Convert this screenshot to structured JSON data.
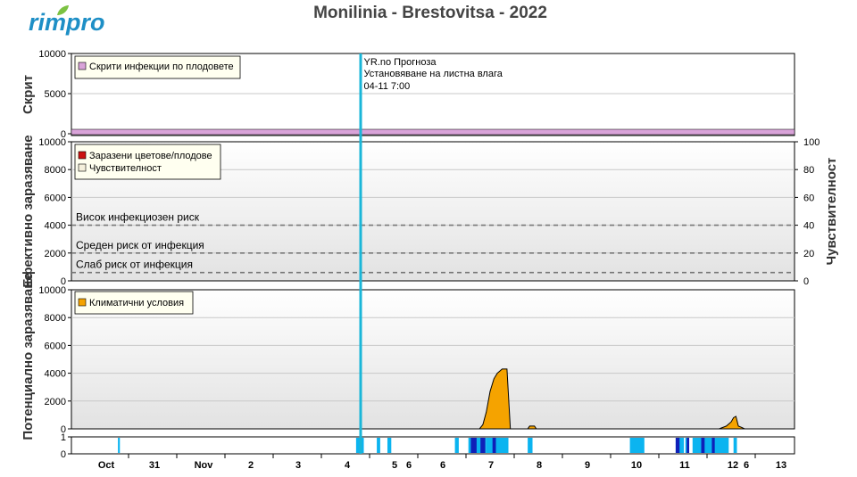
{
  "brand": {
    "name": "rimpro",
    "leaf_color": "#7cc242",
    "text_color": "#1e8fc6"
  },
  "chart_data": {
    "type": "area",
    "title": "Monilinia - Brestovitsa - 2022",
    "x_ticks_major": [
      "Oct",
      "31",
      "Nov",
      "2",
      "3",
      "4",
      "5",
      "6",
      "7",
      "8",
      "9",
      "10",
      "11",
      "12",
      "13"
    ],
    "x_ticks_minor": [
      "6",
      "6"
    ],
    "forecast_marker": {
      "lines": [
        "YR.no Прогноза",
        "Установяване на листна влага",
        "04-11 7:00"
      ],
      "color": "#1ab6d8"
    },
    "panels": [
      {
        "id": "hidden",
        "ylabel": "Скрит",
        "ylim": [
          0,
          10000
        ],
        "yticks": [
          "10000",
          "5000",
          "0"
        ],
        "legend": [
          {
            "label": "Скрити инфекции по плодовете",
            "color": "#d9a3d9"
          }
        ],
        "baseline_value": 300
      },
      {
        "id": "effective",
        "ylabel": "Ефективно заразяване",
        "ylabel_right": "Чувствителност",
        "ylim": [
          0,
          10000
        ],
        "yticks": [
          "10000",
          "8000",
          "6000",
          "4000",
          "2000",
          "0"
        ],
        "ylim_right": [
          0,
          100
        ],
        "yticks_right": [
          "100",
          "80",
          "60",
          "40",
          "20",
          "0"
        ],
        "legend": [
          {
            "label": "Заразени цветове/плодове",
            "color": "#cc1111"
          },
          {
            "label": "Чувствителност",
            "color": "#f5f0dc"
          }
        ],
        "risk_levels": [
          {
            "label": "Висок инфекциозен риск",
            "value": 4000
          },
          {
            "label": "Среден риск от инфекция",
            "value": 2000
          },
          {
            "label": "Слаб риск от инфекция",
            "value": 600
          }
        ]
      },
      {
        "id": "potential",
        "ylabel": "Потенциално заразяване",
        "ylim": [
          0,
          10000
        ],
        "yticks": [
          "10000",
          "8000",
          "6000",
          "4000",
          "2000",
          "0"
        ],
        "legend": [
          {
            "label": "Климатични условия",
            "color": "#f5a300"
          }
        ],
        "series": [
          {
            "name": "Климатични условия",
            "points": [
              [
                0,
                0
              ],
              [
                6.78,
                0
              ],
              [
                6.85,
                300
              ],
              [
                6.92,
                1200
              ],
              [
                7.0,
                2700
              ],
              [
                7.08,
                3600
              ],
              [
                7.15,
                4000
              ],
              [
                7.25,
                4300
              ],
              [
                7.35,
                4300
              ],
              [
                7.42,
                0
              ],
              [
                7.78,
                0
              ],
              [
                7.82,
                200
              ],
              [
                7.92,
                200
              ],
              [
                7.96,
                0
              ],
              [
                11.75,
                0
              ],
              [
                11.9,
                200
              ],
              [
                12.0,
                500
              ],
              [
                12.05,
                800
              ],
              [
                12.1,
                900
              ],
              [
                12.15,
                200
              ],
              [
                12.22,
                100
              ],
              [
                12.28,
                0
              ],
              [
                13.3,
                0
              ]
            ]
          }
        ]
      },
      {
        "id": "wetness",
        "ylim": [
          0,
          1
        ],
        "yticks": [
          "1",
          "0"
        ],
        "wet_periods_light": [
          [
            -0.72,
            -0.68
          ],
          [
            4.22,
            4.38
          ],
          [
            4.65,
            4.72
          ],
          [
            4.87,
            4.95
          ],
          [
            6.27,
            6.35
          ],
          [
            6.55,
            6.92
          ],
          [
            6.92,
            7.38
          ],
          [
            7.78,
            7.88
          ],
          [
            9.9,
            10.2
          ],
          [
            10.85,
            11.02
          ],
          [
            11.05,
            11.12
          ],
          [
            11.2,
            11.95
          ],
          [
            12.05,
            12.12
          ]
        ],
        "wet_periods_dark": [
          [
            6.6,
            6.72
          ],
          [
            6.8,
            6.9
          ],
          [
            7.05,
            7.12
          ],
          [
            10.85,
            10.93
          ],
          [
            11.08,
            11.13
          ],
          [
            11.38,
            11.45
          ],
          [
            11.6,
            11.66
          ]
        ],
        "colors": {
          "light": "#0bb4f0",
          "dark": "#0f1fb8"
        }
      }
    ]
  }
}
